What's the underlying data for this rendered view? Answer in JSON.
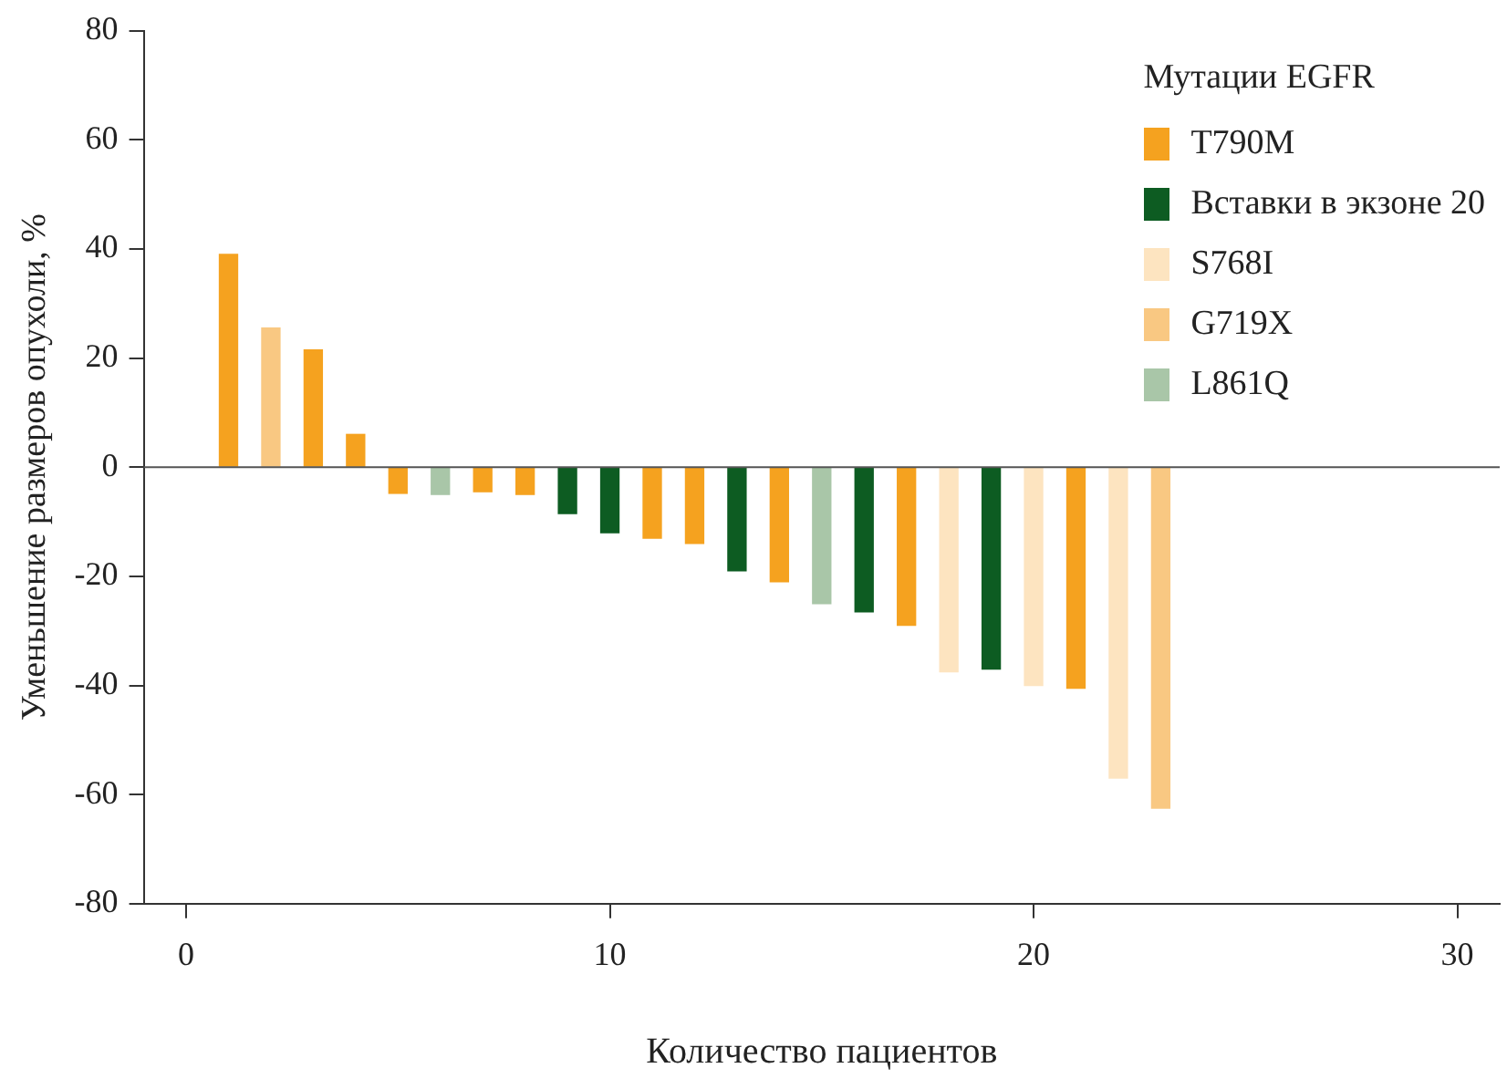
{
  "chart_data": {
    "type": "bar",
    "xlabel": "Количество пациентов",
    "ylabel": "Уменьшение размеров опухоли, %",
    "legend_title": "Мутации EGFR",
    "legend": "top right",
    "x": [
      1,
      2,
      3,
      4,
      5,
      6,
      7,
      8,
      9,
      10,
      11,
      12,
      13,
      14,
      15,
      16,
      17,
      18,
      19,
      20,
      21,
      22,
      23
    ],
    "xlim": [
      -1,
      31
    ],
    "xticks": [
      0,
      10,
      20,
      30
    ],
    "ylim": [
      -80,
      80
    ],
    "yticks": [
      -80,
      -60,
      -40,
      -20,
      0,
      20,
      40,
      60,
      80
    ],
    "grid": false,
    "ref_lines": [
      {
        "axis": "y",
        "value": 0,
        "color": "#555555"
      }
    ],
    "series": [
      {
        "name": "T790M",
        "color": "#f5a21f",
        "values": [
          39,
          null,
          21.5,
          6,
          -4.8,
          null,
          -4.5,
          -5,
          null,
          null,
          -13,
          -14,
          null,
          -21,
          null,
          null,
          -29,
          null,
          null,
          null,
          -40.5,
          null,
          null
        ]
      },
      {
        "name": "Вставки в экзоне 20",
        "color": "#0d5c22",
        "values": [
          null,
          null,
          null,
          null,
          null,
          null,
          null,
          null,
          -8.5,
          -12,
          null,
          null,
          -19,
          null,
          null,
          -26.5,
          null,
          null,
          -37,
          null,
          null,
          null,
          null
        ]
      },
      {
        "name": "S768I",
        "color": "#fde4c0",
        "values": [
          null,
          null,
          null,
          null,
          null,
          null,
          null,
          null,
          null,
          null,
          null,
          null,
          null,
          null,
          null,
          null,
          null,
          -37.5,
          null,
          -40,
          null,
          -57,
          null
        ]
      },
      {
        "name": "G719X",
        "color": "#f9c882",
        "values": [
          null,
          25.5,
          null,
          null,
          null,
          null,
          null,
          null,
          null,
          null,
          null,
          null,
          null,
          null,
          null,
          null,
          null,
          null,
          null,
          null,
          null,
          null,
          -62.5
        ]
      },
      {
        "name": "L861Q",
        "color": "#a9c6a8",
        "values": [
          null,
          null,
          null,
          null,
          null,
          -5,
          null,
          null,
          null,
          null,
          null,
          null,
          null,
          null,
          -25,
          null,
          null,
          null,
          null,
          null,
          null,
          null,
          null
        ]
      }
    ]
  }
}
